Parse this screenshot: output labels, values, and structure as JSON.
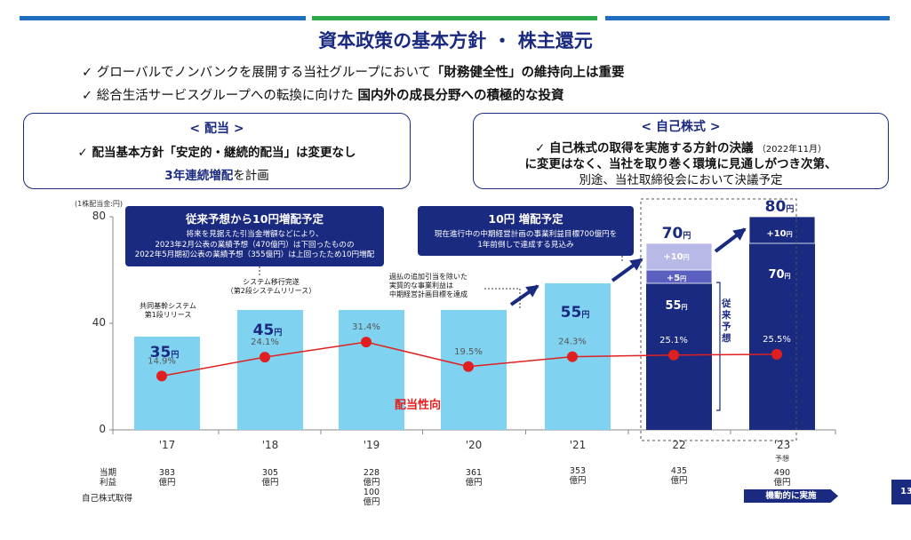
{
  "header": {
    "title": "資本政策の基本方針 ・ 株主還元",
    "bullets": [
      {
        "pre": "✓ グローバルでノンバンクを展開する当社グループにおいて",
        "bold": "「財務健全性」",
        "post": "の維持向上は重要"
      },
      {
        "pre": "✓ 総合生活サービスグループへの転換に向けた ",
        "bold": "国内外の成長分野への積極的な投資",
        "post": ""
      }
    ]
  },
  "dividend_box": {
    "head": "< 配当 >",
    "line1": "✓ 配当基本方針「安定的・継続的配当」は変更なし",
    "line2_bold": "3年連続増配",
    "line2_rest": "を計画"
  },
  "buyback_box": {
    "head": "< 自己株式 >",
    "line1_bold": "✓ 自己株式の取得を実施する方針の決議",
    "line1_small": "（2022年11月）",
    "line2": "に変更はなく、当社を取り巻く環境に見通しがつき次第、",
    "line3": "別途、当社取締役会において決議予定"
  },
  "callouts": {
    "left": {
      "head": "従来予想から10円増配予定",
      "body": [
        "将来を見据えた引当金増額などにより、",
        "2023年2月公表の業績予想（470億円）は下回ったものの",
        "2022年5月期初公表の業績予想（355億円）は上回ったため10円増配"
      ]
    },
    "right": {
      "head": "10円 増配予定",
      "body": [
        "現在進行中の中期経営計画の事業利益目標700億円を",
        "1年前倒しで達成する見込み"
      ]
    }
  },
  "notes": {
    "n17": [
      "共同基幹システム",
      "第1段リリース"
    ],
    "n18": [
      "システム移行完遂",
      "（第2段システムリリース）"
    ],
    "n20": [
      "過払の追加引当を除いた",
      "実質的な事業利益は",
      "中期経営計画目標を達成"
    ]
  },
  "y_unit": "(1株配当金:円)",
  "payout_label": "配当性向",
  "forecast_label": "従来予想",
  "row_labels": {
    "profit": [
      "当期",
      "利益"
    ],
    "buyback": "自己株式取得"
  },
  "profits": [
    [
      "383",
      "億円"
    ],
    [
      "305",
      "億円"
    ],
    [
      "228",
      "億円",
      "100",
      "億円"
    ],
    [
      "361",
      "億円"
    ],
    [
      "353",
      "億円"
    ],
    [
      "435",
      "億円"
    ],
    [
      "490",
      "億円"
    ]
  ],
  "kidou_label": "機動的に実施",
  "page_number": "13",
  "colors": {
    "navy": "#1a2a80",
    "light_bar": "#7fd3f0",
    "lavender": "#b9b9e8",
    "mid_bar": "#5a5fc0",
    "payout_line": "#e02020",
    "top_blue": "#1f6fc0",
    "top_green": "#2ca84a"
  },
  "chart_data": {
    "type": "bar",
    "categories": [
      "'17",
      "'18",
      "'19",
      "'20",
      "'21",
      "22",
      "'23"
    ],
    "x_sub_label": {
      "'23": "予想"
    },
    "ylim": [
      0,
      80
    ],
    "yticks": [
      0,
      40,
      80
    ],
    "series": [
      {
        "values": [
          35,
          45,
          45,
          45,
          55,
          55,
          70
        ],
        "color": "#7fd3f0"
      },
      {
        "values": [
          null,
          null,
          null,
          null,
          null,
          5,
          10
        ]
      },
      {
        "values": [
          null,
          null,
          null,
          null,
          null,
          10,
          null
        ]
      }
    ],
    "totals_labels": [
      {
        "value": "35",
        "unit": "円"
      },
      {
        "value": "45",
        "unit": "円"
      },
      null,
      null,
      {
        "value": "55",
        "unit": "円"
      },
      {
        "value": "70",
        "unit": "円"
      },
      {
        "value": "80",
        "unit": "円"
      }
    ],
    "inner_labels": [
      {
        "index": 5,
        "text": "55",
        "unit": "円"
      },
      {
        "index": 5,
        "text": "+5",
        "unit": "円"
      },
      {
        "index": 5,
        "text": "+10",
        "unit": "円"
      },
      {
        "index": 6,
        "text": "70",
        "unit": "円"
      },
      {
        "index": 6,
        "text": "+10",
        "unit": "円"
      }
    ],
    "payout_ratio": [
      14.9,
      24.1,
      31.4,
      19.5,
      24.3,
      25.1,
      25.5
    ],
    "payout_labels": [
      "14.9%",
      "24.1%",
      "31.4%",
      "19.5%",
      "24.3%",
      "25.1%",
      "25.5%"
    ]
  }
}
